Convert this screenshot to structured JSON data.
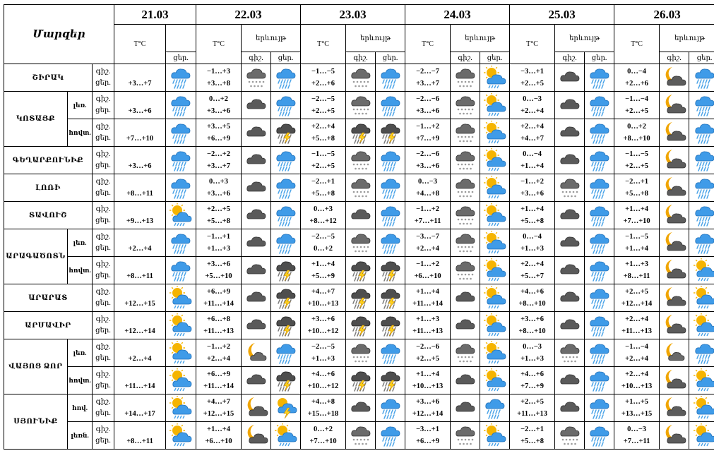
{
  "header": {
    "corner_label": "Մարզեր",
    "dates": [
      "21.03",
      "22.03",
      "23.03",
      "24.03",
      "25.03",
      "26.03"
    ],
    "temp_label": "T°C",
    "phenomenon_label": "երևույթ",
    "night_label": "գիշ.",
    "day_label": "ցեր."
  },
  "rows": [
    {
      "region": "ՇԻՐԱԿ",
      "sub": "",
      "labels": [
        "գիշ.",
        "ցեր."
      ],
      "d1": "+3…+7",
      "d1_icon": "rain-cloud",
      "days": [
        {
          "night": "−1…+3",
          "day": "+3…+8",
          "icons": [
            "snow-cloud",
            "rain-cloud"
          ]
        },
        {
          "night": "−1…−5",
          "day": "+2…+6",
          "icons": [
            "snow-cloud",
            "rain-cloud"
          ]
        },
        {
          "night": "−2…−7",
          "day": "+3…+7",
          "icons": [
            "snow-cloud",
            "sun-cloud"
          ]
        },
        {
          "night": "−3…+1",
          "day": "+2…+5",
          "icons": [
            "dark-cloud",
            "rain-cloud"
          ]
        },
        {
          "night": "0…−4",
          "day": "+2…+6",
          "icons": [
            "moon-cloud",
            "rain-cloud"
          ]
        }
      ]
    },
    {
      "region": "ԿՈՏԱՅՔ",
      "sub": "լեռ.",
      "labels": [
        "գիշ.",
        "ցեր."
      ],
      "d1": "+3…+6",
      "d1_icon": "rain-cloud",
      "days": [
        {
          "night": "0…+2",
          "day": "+3…+6",
          "icons": [
            "dark-cloud",
            "rain-cloud"
          ]
        },
        {
          "night": "−2…−5",
          "day": "+2…+5",
          "icons": [
            "snow-cloud",
            "rain-cloud"
          ]
        },
        {
          "night": "−2…−6",
          "day": "+3…+6",
          "icons": [
            "snow-cloud",
            "sun-cloud"
          ]
        },
        {
          "night": "0…−3",
          "day": "+2…+4",
          "icons": [
            "dark-cloud",
            "rain-cloud"
          ]
        },
        {
          "night": "−1…−4",
          "day": "+2…+5",
          "icons": [
            "moon-cloud",
            "rain-cloud"
          ]
        }
      ]
    },
    {
      "region": "",
      "sub": "հովտ.",
      "labels": [
        "գիշ.",
        "ցեր."
      ],
      "d1": "+7…+10",
      "d1_icon": "rain-cloud",
      "days": [
        {
          "night": "+3…+5",
          "day": "+6…+9",
          "icons": [
            "dark-cloud",
            "storm-cloud"
          ]
        },
        {
          "night": "+2…+4",
          "day": "+5…+8",
          "icons": [
            "storm-cloud",
            "storm-cloud"
          ]
        },
        {
          "night": "−1…+2",
          "day": "+7…+9",
          "icons": [
            "snow-cloud",
            "sun-cloud"
          ]
        },
        {
          "night": "+2…+4",
          "day": "+4…+7",
          "icons": [
            "dark-cloud",
            "rain-cloud"
          ]
        },
        {
          "night": "0…+2",
          "day": "+8…+10",
          "icons": [
            "moon-cloud",
            "rain-cloud"
          ]
        }
      ]
    },
    {
      "region": "ԳԵՂԱՐՔՈՒՆԻՔ",
      "sub": "",
      "labels": [
        "գիշ.",
        "ցեր."
      ],
      "d1": "+3…+6",
      "d1_icon": "rain-cloud",
      "days": [
        {
          "night": "−2…+2",
          "day": "+3…+7",
          "icons": [
            "dark-cloud",
            "rain-cloud"
          ]
        },
        {
          "night": "−1…−5",
          "day": "+2…+5",
          "icons": [
            "snow-cloud",
            "rain-cloud"
          ]
        },
        {
          "night": "−2…−6",
          "day": "+3…+6",
          "icons": [
            "snow-cloud",
            "sun-cloud"
          ]
        },
        {
          "night": "0…−4",
          "day": "+1…+4",
          "icons": [
            "dark-cloud",
            "rain-cloud"
          ]
        },
        {
          "night": "−1…−5",
          "day": "+2…+5",
          "icons": [
            "moon-cloud",
            "rain-cloud"
          ]
        }
      ]
    },
    {
      "region": "ԼՈՌԻ",
      "sub": "",
      "labels": [
        "գիշ.",
        "ցեր."
      ],
      "d1": "+8…+11",
      "d1_icon": "rain-cloud",
      "days": [
        {
          "night": "0…+3",
          "day": "+3…+6",
          "icons": [
            "dark-cloud",
            "rain-cloud"
          ]
        },
        {
          "night": "−2…+1",
          "day": "+5…+8",
          "icons": [
            "snow-cloud",
            "rain-cloud"
          ]
        },
        {
          "night": "0…−3",
          "day": "+4…+8",
          "icons": [
            "snow-cloud",
            "sun-cloud"
          ]
        },
        {
          "night": "−1…+2",
          "day": "+3…+6",
          "icons": [
            "snow-cloud",
            "rain-cloud"
          ]
        },
        {
          "night": "−2…+1",
          "day": "+5…+8",
          "icons": [
            "moon-cloud",
            "rain-cloud"
          ]
        }
      ]
    },
    {
      "region": "ՏԱՎՈՒՇ",
      "sub": "",
      "labels": [
        "գիշ.",
        "ցեր."
      ],
      "d1": "+9…+13",
      "d1_icon": "sun-cloud",
      "days": [
        {
          "night": "+2…+5",
          "day": "+5…+8",
          "icons": [
            "dark-cloud",
            "rain-cloud"
          ]
        },
        {
          "night": "0…+3",
          "day": "+8…+12",
          "icons": [
            "dark-cloud",
            "rain-cloud"
          ]
        },
        {
          "night": "−1…+2",
          "day": "+7…+11",
          "icons": [
            "snow-cloud",
            "sun-cloud"
          ]
        },
        {
          "night": "+1…+4",
          "day": "+5…+8",
          "icons": [
            "dark-cloud",
            "rain-cloud"
          ]
        },
        {
          "night": "+1…+4",
          "day": "+7…+10",
          "icons": [
            "moon-cloud",
            "rain-cloud"
          ]
        }
      ]
    },
    {
      "region": "ԱՐԱԳԱԾՈՏՆ",
      "sub": "լեռ.",
      "labels": [
        "գիշ.",
        "ցեր."
      ],
      "d1": "+2…+4",
      "d1_icon": "rain-cloud",
      "days": [
        {
          "night": "−1…+1",
          "day": "+1…+3",
          "icons": [
            "dark-cloud",
            "rain-cloud"
          ]
        },
        {
          "night": "−2…−5",
          "day": "0…+2",
          "icons": [
            "snow-cloud",
            "rain-cloud"
          ]
        },
        {
          "night": "−3…−7",
          "day": "+2…+4",
          "icons": [
            "snow-cloud",
            "sun-cloud"
          ]
        },
        {
          "night": "0…−4",
          "day": "+1…+3",
          "icons": [
            "dark-cloud",
            "rain-cloud"
          ]
        },
        {
          "night": "−1…−5",
          "day": "+1…+4",
          "icons": [
            "moon-cloud",
            "rain-cloud"
          ]
        }
      ]
    },
    {
      "region": "",
      "sub": "հովտ.",
      "labels": [
        "գիշ.",
        "ցեր."
      ],
      "d1": "+8…+11",
      "d1_icon": "rain-cloud",
      "days": [
        {
          "night": "+3…+6",
          "day": "+5…+10",
          "icons": [
            "dark-cloud",
            "storm-cloud"
          ]
        },
        {
          "night": "+1…+4",
          "day": "+5…+9",
          "icons": [
            "storm-cloud",
            "storm-cloud"
          ]
        },
        {
          "night": "−1…+2",
          "day": "+6…+10",
          "icons": [
            "snow-cloud",
            "sun-cloud"
          ]
        },
        {
          "night": "+2…+4",
          "day": "+5…+7",
          "icons": [
            "dark-cloud",
            "rain-cloud"
          ]
        },
        {
          "night": "+1…+3",
          "day": "+8…+11",
          "icons": [
            "moon-cloud",
            "sun-cloud"
          ]
        }
      ]
    },
    {
      "region": "ԱՐԱՐԱՏ",
      "sub": "",
      "labels": [
        "գիշ.",
        "ցեր."
      ],
      "d1": "+12…+15",
      "d1_icon": "sun-cloud",
      "days": [
        {
          "night": "+6…+9",
          "day": "+11…+14",
          "icons": [
            "dark-cloud",
            "storm-cloud"
          ]
        },
        {
          "night": "+4…+7",
          "day": "+10…+13",
          "icons": [
            "storm-cloud",
            "storm-cloud"
          ]
        },
        {
          "night": "+1…+4",
          "day": "+11…+14",
          "icons": [
            "dark-cloud",
            "sun-cloud"
          ]
        },
        {
          "night": "+4…+6",
          "day": "+8…+10",
          "icons": [
            "dark-cloud",
            "rain-cloud"
          ]
        },
        {
          "night": "+2…+5",
          "day": "+12…+14",
          "icons": [
            "moon-cloud",
            "sun-cloud"
          ]
        }
      ]
    },
    {
      "region": "ԱՐՄԱՎԻՐ",
      "sub": "",
      "labels": [
        "գիշ.",
        "ցեր."
      ],
      "d1": "+12…+14",
      "d1_icon": "sun-cloud",
      "days": [
        {
          "night": "+6…+8",
          "day": "+11…+13",
          "icons": [
            "dark-cloud",
            "storm-cloud"
          ]
        },
        {
          "night": "+3…+6",
          "day": "+10…+12",
          "icons": [
            "storm-cloud",
            "storm-cloud"
          ]
        },
        {
          "night": "+1…+3",
          "day": "+11…+13",
          "icons": [
            "dark-cloud",
            "sun-cloud"
          ]
        },
        {
          "night": "+3…+6",
          "day": "+8…+10",
          "icons": [
            "dark-cloud",
            "rain-cloud"
          ]
        },
        {
          "night": "+2…+4",
          "day": "+11…+13",
          "icons": [
            "moon-cloud",
            "sun-cloud"
          ]
        }
      ]
    },
    {
      "region": "ՎԱՅՈՑ ՁՈՐ",
      "sub": "լեռ.",
      "labels": [
        "գիշ.",
        "ցեր."
      ],
      "d1": "+2…+4",
      "d1_icon": "sun-cloud",
      "days": [
        {
          "night": "−1…+2",
          "day": "+2…+4",
          "icons": [
            "moon",
            "rain-cloud"
          ]
        },
        {
          "night": "−2…−5",
          "day": "+1…+3",
          "icons": [
            "snow-cloud",
            "rain-cloud"
          ]
        },
        {
          "night": "−2…−6",
          "day": "+2…+5",
          "icons": [
            "snow-cloud",
            "sun-cloud"
          ]
        },
        {
          "night": "0…−3",
          "day": "+1…+3",
          "icons": [
            "snow-cloud",
            "rain-cloud"
          ]
        },
        {
          "night": "−1…−4",
          "day": "+2…+4",
          "icons": [
            "moon",
            "rain-cloud"
          ]
        }
      ]
    },
    {
      "region": "",
      "sub": "հովտ.",
      "labels": [
        "գիշ.",
        "ցեր."
      ],
      "d1": "+11…+14",
      "d1_icon": "sun-cloud",
      "days": [
        {
          "night": "+6…+9",
          "day": "+11…+14",
          "icons": [
            "dark-cloud",
            "storm-cloud"
          ]
        },
        {
          "night": "+4…+6",
          "day": "+10…+12",
          "icons": [
            "storm-cloud",
            "storm-cloud"
          ]
        },
        {
          "night": "+1…+4",
          "day": "+10…+13",
          "icons": [
            "dark-cloud",
            "sun-cloud"
          ]
        },
        {
          "night": "+4…+6",
          "day": "+7…+9",
          "icons": [
            "dark-cloud",
            "rain-cloud"
          ]
        },
        {
          "night": "+2…+4",
          "day": "+10…+13",
          "icons": [
            "moon-cloud",
            "sun-cloud"
          ]
        }
      ]
    },
    {
      "region": "ՍՅՈՒՆԻՔ",
      "sub": "հով.",
      "labels": [
        "գիշ.",
        "ցեր."
      ],
      "d1": "+14…+17",
      "d1_icon": "sun-cloud",
      "days": [
        {
          "night": "+4…+7",
          "day": "+12…+15",
          "icons": [
            "moon-cloud",
            "sun-storm"
          ]
        },
        {
          "night": "+4…+8",
          "day": "+15…+18",
          "icons": [
            "dark-cloud",
            "rain-cloud"
          ]
        },
        {
          "night": "+3…+6",
          "day": "+12…+14",
          "icons": [
            "dark-cloud",
            "rain-cloud"
          ]
        },
        {
          "night": "+2…+5",
          "day": "+11…+13",
          "icons": [
            "dark-cloud",
            "rain-cloud"
          ]
        },
        {
          "night": "+1…+5",
          "day": "+13…+15",
          "icons": [
            "moon-cloud",
            "sun-cloud"
          ]
        }
      ]
    },
    {
      "region": "",
      "sub": "լեռն.",
      "labels": [
        "գիշ.",
        "ցեր."
      ],
      "d1": "+8…+11",
      "d1_icon": "sun-cloud",
      "days": [
        {
          "night": "+1…+4",
          "day": "+6…+10",
          "icons": [
            "moon-cloud",
            "sun-cloud"
          ]
        },
        {
          "night": "0…+2",
          "day": "+7…+10",
          "icons": [
            "snow-cloud",
            "rain-cloud"
          ]
        },
        {
          "night": "−3…+1",
          "day": "+6…+9",
          "icons": [
            "snow-cloud",
            "sun-cloud"
          ]
        },
        {
          "night": "−2…+1",
          "day": "+5…+8",
          "icons": [
            "snow-cloud",
            "rain-cloud"
          ]
        },
        {
          "night": "0…−3",
          "day": "+7…+11",
          "icons": [
            "moon-cloud",
            "sun-cloud"
          ]
        }
      ]
    }
  ],
  "colors": {
    "border": "#000000",
    "sun": "#f5b400",
    "cloud_blue": "#3f9be8",
    "cloud_dark": "#5a5a5a",
    "moon": "#f0a500",
    "rain": "#4aa3e8"
  }
}
